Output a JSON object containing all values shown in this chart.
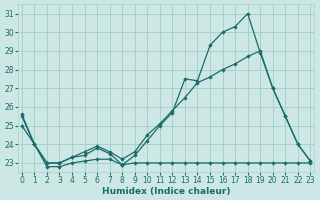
{
  "xlabel": "Humidex (Indice chaleur)",
  "xlim": [
    0,
    23
  ],
  "ylim": [
    22.5,
    31.5
  ],
  "yticks": [
    23,
    24,
    25,
    26,
    27,
    28,
    29,
    30,
    31
  ],
  "xticks": [
    0,
    1,
    2,
    3,
    4,
    5,
    6,
    7,
    8,
    9,
    10,
    11,
    12,
    13,
    14,
    15,
    16,
    17,
    18,
    19,
    20,
    21,
    22,
    23
  ],
  "bg_color": "#cde8e4",
  "grid_color": "#a8d0cc",
  "line_color": "#1a6b6b",
  "series": [
    {
      "x": [
        0,
        1,
        2,
        3,
        4,
        5,
        6,
        7,
        8,
        9,
        10,
        11,
        12,
        13,
        14,
        15,
        16,
        17,
        18,
        19,
        20,
        21,
        22,
        23
      ],
      "y": [
        25.6,
        24.0,
        22.8,
        22.8,
        23.0,
        23.1,
        23.2,
        23.2,
        22.9,
        23.0,
        23.0,
        23.0,
        23.0,
        23.0,
        23.0,
        23.0,
        23.0,
        23.0,
        23.0,
        23.0,
        23.0,
        23.0,
        23.0,
        23.0
      ]
    },
    {
      "x": [
        0,
        1,
        2,
        3,
        4,
        5,
        6,
        7,
        8,
        9,
        10,
        11,
        12,
        13,
        14,
        15,
        16,
        17,
        18,
        19,
        20,
        21,
        22,
        23
      ],
      "y": [
        25.0,
        24.0,
        23.0,
        23.0,
        23.3,
        23.6,
        23.9,
        23.6,
        23.2,
        23.6,
        24.5,
        25.1,
        25.8,
        26.5,
        27.3,
        27.6,
        28.0,
        28.3,
        28.7,
        29.0,
        27.0,
        25.5,
        24.0,
        23.1
      ]
    },
    {
      "x": [
        0,
        1,
        2,
        3,
        4,
        5,
        6,
        7,
        8,
        9,
        10,
        11,
        12,
        13,
        14,
        15,
        16,
        17,
        18,
        19,
        20,
        21,
        22,
        23
      ],
      "y": [
        25.5,
        24.0,
        23.0,
        23.0,
        23.3,
        23.4,
        23.8,
        23.5,
        22.9,
        23.4,
        24.2,
        25.0,
        25.7,
        27.5,
        27.4,
        29.3,
        30.0,
        30.3,
        31.0,
        28.9,
        27.0,
        25.5,
        24.0,
        23.1
      ]
    }
  ]
}
